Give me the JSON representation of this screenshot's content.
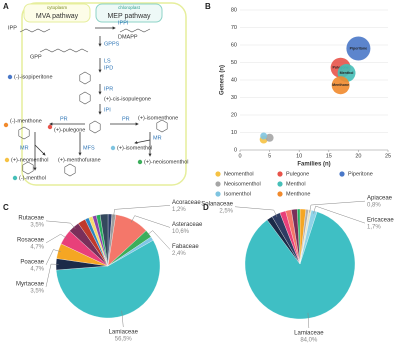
{
  "diagram": {
    "label": "A",
    "compartments": [
      {
        "name": "cytoplasm",
        "pathway": "MVA pathway"
      },
      {
        "name": "chloroplast",
        "pathway": "MEP pathway"
      }
    ],
    "compounds": [
      "IPP",
      "DMAPP",
      "GPP",
      "(-)-isopiperitone",
      "(+)-cis-isopulegone",
      "(-)-menthone",
      "(+)-pulegone",
      "(+)-isomenthone",
      "(+)-neomenthol",
      "(+)-menthofurane",
      "(+)-isomenthol",
      "(+)-neoisomenthol",
      "(-)-menthol"
    ],
    "enzymes": [
      "IPPI",
      "GPPS",
      "LS",
      "IPD",
      "IPR",
      "IPI",
      "PR",
      "PR",
      "MR",
      "MFS",
      "MR"
    ]
  },
  "chart_data": [
    {
      "type": "bubble",
      "panel_label": "B",
      "x_label": "Families (n)",
      "y_label": "Genera (n)",
      "xlim": [
        0,
        25
      ],
      "xticks": [
        0,
        5,
        10,
        15,
        20,
        25
      ],
      "ylim": [
        0,
        80
      ],
      "yticks": [
        0,
        10,
        20,
        30,
        40,
        50,
        60,
        70,
        80
      ],
      "grid": true,
      "series": [
        {
          "name": "Neomenthol",
          "color": "#f6c243",
          "x": [
            4
          ],
          "values": [
            6
          ],
          "sizes": [
            4
          ]
        },
        {
          "name": "Neoisomenthol",
          "color": "#a5a5a5",
          "x": [
            5
          ],
          "values": [
            7
          ],
          "sizes": [
            4
          ]
        },
        {
          "name": "Isomenthol",
          "color": "#7fc4e0",
          "x": [
            4
          ],
          "values": [
            8
          ],
          "sizes": [
            3
          ]
        },
        {
          "name": "Pulegone",
          "color": "#e8534a",
          "x": [
            17
          ],
          "values": [
            47
          ],
          "sizes": [
            25
          ]
        },
        {
          "name": "Menthol",
          "color": "#45bfb8",
          "x": [
            18
          ],
          "values": [
            44
          ],
          "sizes": [
            20
          ]
        },
        {
          "name": "Menthone",
          "color": "#f18a2c",
          "x": [
            17
          ],
          "values": [
            37
          ],
          "sizes": [
            20
          ]
        },
        {
          "name": "Piperitone",
          "color": "#4a78c8",
          "x": [
            20
          ],
          "values": [
            58
          ],
          "sizes": [
            36
          ]
        }
      ]
    },
    {
      "type": "pie",
      "panel_label": "C",
      "categories": [
        null,
        "Acoraceae",
        "Asteraceae",
        "Fabaceae",
        null,
        "Lamiaceae",
        "Myrtaceae",
        "Poaceae",
        "Rosaceae",
        "Rutaceae",
        null,
        null,
        null,
        null,
        null,
        null
      ],
      "values": [
        1.2,
        1.2,
        10.6,
        2.4,
        1.2,
        56.5,
        3.5,
        4.7,
        4.7,
        3.5,
        2.4,
        1.2,
        1.2,
        1.2,
        1.2,
        2.4
      ],
      "value_labels": [
        null,
        "1,2%",
        "10,6%",
        "2,4%",
        null,
        "56,5%",
        "3,5%",
        "4,7%",
        "4,7%",
        "3,5%",
        null,
        null,
        null,
        null,
        null,
        null
      ],
      "colors": [
        "#2b3a67",
        "#9e9e9e",
        "#f4776a",
        "#3cae5b",
        "#7fc6e6",
        "#3fbfc4",
        "#1b2a48",
        "#f5a623",
        "#e8407a",
        "#7a2f5a",
        "#c0392b",
        "#2e86c1",
        "#f7dc6f",
        "#8e44ad",
        "#27ae60",
        "#34495e"
      ]
    },
    {
      "type": "pie",
      "panel_label": "D",
      "categories": [
        null,
        null,
        "Apiaceae",
        "Ericaceae",
        "Lamiaceae",
        null,
        "Solanaceae",
        null,
        null,
        null,
        null
      ],
      "values": [
        1.7,
        0.8,
        0.8,
        1.7,
        84.0,
        1.7,
        2.5,
        1.7,
        1.7,
        1.7,
        0.8
      ],
      "value_labels": [
        null,
        null,
        "0,8%",
        "1,7%",
        "84,0%",
        null,
        "2,5%",
        null,
        null,
        null,
        null
      ],
      "colors": [
        "#f5a623",
        "#b0b0b0",
        "#e9e4c9",
        "#8fd3e8",
        "#3fbfc4",
        "#1b2a48",
        "#2e3c63",
        "#e8407a",
        "#f4776a",
        "#7a2f5a",
        "#27ae60"
      ]
    }
  ]
}
